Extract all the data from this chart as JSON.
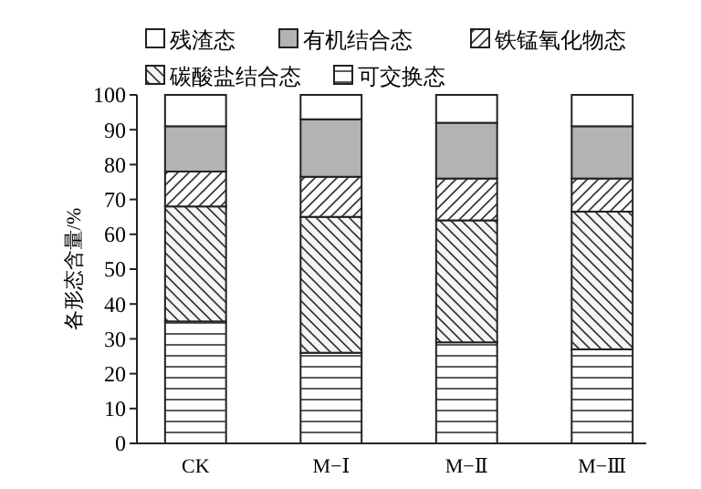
{
  "chart_data": {
    "type": "bar",
    "stacked": true,
    "ylabel": "各形态含量/%",
    "categories": [
      "CK",
      "M−Ⅰ",
      "M−Ⅱ",
      "M−Ⅲ"
    ],
    "ylim": [
      0,
      100
    ],
    "yticks": [
      0,
      10,
      20,
      30,
      40,
      50,
      60,
      70,
      80,
      90,
      100
    ],
    "legend": "top",
    "grid": false,
    "series": [
      {
        "name": "可交换态",
        "color": "#ffffff",
        "values": [
          35,
          26,
          29,
          27
        ]
      },
      {
        "name": "碳酸盐结合态",
        "color": "#f5f5f5",
        "values": [
          33,
          39,
          35,
          39.5
        ]
      },
      {
        "name": "铁锰氧化物态",
        "color": "#fdfdfd",
        "values": [
          10,
          11.5,
          12,
          9.5
        ]
      },
      {
        "name": "有机结合态",
        "color": "#b3b3b3",
        "values": [
          13,
          16.5,
          16,
          15
        ]
      },
      {
        "name": "残渣态",
        "color": "#ffffff",
        "values": [
          9,
          7,
          8,
          9
        ]
      }
    ]
  }
}
